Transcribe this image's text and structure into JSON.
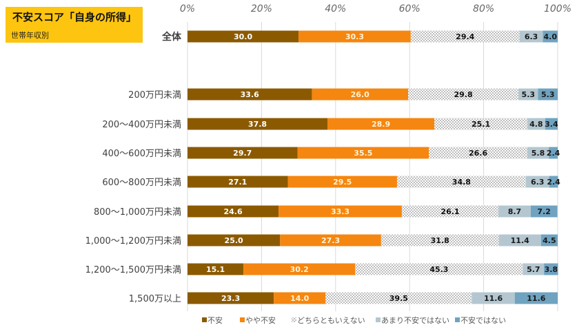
{
  "header": {
    "title": "不安スコア「自身の所得」",
    "subtitle": "世帯年収別"
  },
  "chart_data": {
    "type": "bar",
    "orientation": "horizontal",
    "stacked": "percent",
    "title": "不安スコア「自身の所得」",
    "subtitle": "世帯年収別",
    "xlim": [
      0,
      100
    ],
    "x_ticks": [
      "0%",
      "20%",
      "40%",
      "60%",
      "80%",
      "100%"
    ],
    "grid": true,
    "legend_position": "bottom",
    "categories": [
      "全体",
      "200万円未満",
      "200～400万円未満",
      "400～600万円未満",
      "600～800万円未満",
      "800～1,000万円未満",
      "1,000～1,200万円未満",
      "1,200～1,500万円未満",
      "1,500万以上"
    ],
    "series": [
      {
        "name": "不安",
        "color": "#8B5A00",
        "label_color": "#FFFFFF",
        "values": [
          30.0,
          33.6,
          37.8,
          29.7,
          27.1,
          24.6,
          25.0,
          15.1,
          23.3
        ],
        "labels": [
          "30.0",
          "33.6",
          "37.8",
          "29.7",
          "27.1",
          "24.6",
          "25.0",
          "15.1",
          "23.3"
        ]
      },
      {
        "name": "やや不安",
        "color": "#F5860F",
        "label_color": "#FFF3D6",
        "values": [
          30.3,
          26.0,
          28.9,
          35.5,
          29.5,
          33.3,
          27.3,
          30.2,
          14.0
        ],
        "labels": [
          "30.3",
          "26.0",
          "28.9",
          "35.5",
          "29.5",
          "33.3",
          "27.3",
          "30.2",
          "14.0"
        ]
      },
      {
        "name": "どちらともいえない",
        "color": "pattern-checker",
        "label_color": "#111111",
        "values": [
          29.4,
          29.8,
          25.1,
          26.6,
          34.8,
          26.1,
          31.8,
          45.3,
          39.5
        ],
        "labels": [
          "29.4",
          "29.8",
          "25.1",
          "26.6",
          "34.8",
          "26.1",
          "31.8",
          "45.3",
          "39.5"
        ]
      },
      {
        "name": "あまり不安ではない",
        "color": "#B4C7D0",
        "label_color": "#1A1A1A",
        "values": [
          6.3,
          5.3,
          4.8,
          5.8,
          6.3,
          8.7,
          11.4,
          5.7,
          11.6
        ],
        "labels": [
          "6.3",
          "5.3",
          "4.8",
          "5.8",
          "6.3",
          "8.7",
          "11.4",
          "5.7",
          "11.6"
        ]
      },
      {
        "name": "不安ではない",
        "color": "#6FA3C0",
        "label_color": "#1A1A1A",
        "values": [
          4.0,
          5.3,
          3.4,
          2.4,
          2.4,
          7.2,
          4.5,
          3.8,
          11.6
        ],
        "labels": [
          "4.0",
          "5.3",
          "3.4",
          "2.4",
          "2.4",
          "7.2",
          "4.5",
          "3.8",
          "11.6"
        ]
      }
    ]
  }
}
